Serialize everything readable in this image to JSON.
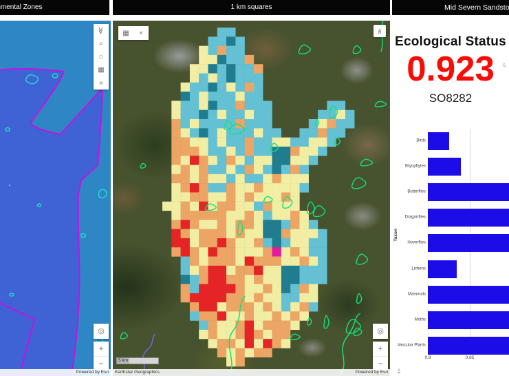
{
  "left_panel": {
    "title": "Environmental Zones",
    "attribution": "Powered by Esri",
    "toolbar": [
      {
        "name": "collapse-up-icon",
        "glyph": "≪",
        "rot": true
      },
      {
        "name": "search-icon",
        "glyph": "⌕",
        "rot": false
      },
      {
        "name": "home-icon",
        "glyph": "⌂",
        "rot": false
      },
      {
        "name": "basemap-grid-icon",
        "glyph": "▦",
        "rot": false
      },
      {
        "name": "collapse-left-icon",
        "glyph": "«",
        "rot": false
      }
    ],
    "controls": {
      "locate": "◎",
      "zoom_in": "+",
      "zoom_out": "−"
    },
    "colors": {
      "zone_light": "#2e86c5",
      "zone_dark": "#3f63d4",
      "boundary": "#c511e3",
      "site_outline": "#1fe0c8"
    }
  },
  "middle_panel": {
    "title": "1 km squares",
    "buttons": {
      "grid": "▦",
      "close": "×",
      "collapse_up": "≪"
    },
    "controls": {
      "locate": "◎",
      "zoom_in": "+",
      "zoom_out": "−"
    },
    "scale_bar": "5 km",
    "attribution_left": "Earthstar Geographics",
    "attribution_right": "Powered by Esri",
    "site_outline_color": "#14e07c",
    "river_color": "#6f63d6",
    "grid": {
      "palette": {
        "c": "#66c7dd",
        "t": "#1f7f96",
        "y": "#fbf7ab",
        "o": "#f6aa67",
        "r": "#ee2226",
        "m": "#ee18a4"
      },
      "rows": [
        "......cc.............",
        ".....cctc............",
        "....ycocc............",
        "....yytcco...........",
        "...yytctcco..........",
        "...ycyctccc..........",
        "..ycctcycoc..........",
        "..tcycccycc..........",
        ".yccytccoccc......cc.",
        ".ycctcyccycc.....ccyc",
        ".ocyccccoccc....cyocc",
        ".oyctcycccycc..ccocc.",
        ".ooyycyccoccyyccyyc..",
        ".oooyccycoccttoyyc...",
        ".oyroycoycyyttyyc....",
        ".yoyoccycoyctcoc.....",
        ".ooyoyycyccyoyyy.....",
        ".yoroccoyyoyyyyc.....",
        ".yyooyyoyoyyyoy......",
        "yyoyryooyycoyyy......",
        ".yoooooyyoycyyoy.....",
        ".oroyyoyooyttcoyc....",
        ".royoooyoyyttoyyyc...",
        ".rryooroyyoctcyycc...",
        ".oroyrooyyyomyoycc...",
        "..coyoooyroooyyoyc...",
        "..cyorryooryyttccc...",
        "..tcorrooyoyyttccc...",
        "..ocrrrroyyoytcoy....",
        "..orrrrooyoyyccyy....",
        "...orryoooyoycyoc....",
        "...cooryyoyyoyoy.....",
        "....coyyoryoooy......",
        "....yoyyoroyoo.......",
        ".....yooyryroy.......",
        "......oyoyoo.........",
        ".......yo............"
      ]
    }
  },
  "right_panel": {
    "title": "Mid Severn Sandstone Plateau",
    "heading": "Ecological Status",
    "value": "0.923",
    "value_color": "#f90c06",
    "partial_value": "0.",
    "grid_ref": "SO8282",
    "download_glyph": "↓",
    "chart_data": {
      "type": "bar",
      "orientation": "horizontal",
      "title": "",
      "categories": [
        "Birds",
        "Bryophytes",
        "Butterflies",
        "Dragonflies",
        "Hoverflies",
        "Lichens",
        "Mammals",
        "Moths",
        "Vascular Plants"
      ],
      "values": [
        0.825,
        0.839,
        0.92,
        0.92,
        0.92,
        0.834,
        0.92,
        0.92,
        0.92
      ],
      "clipped_at_right_edge": [
        false,
        false,
        true,
        true,
        true,
        false,
        true,
        true,
        true
      ],
      "ylabel": "Taxon",
      "xlabel": "",
      "xticks": [
        "0.8",
        "0.85"
      ],
      "xlim": [
        0.8,
        0.897
      ],
      "bar_color": "#1b0ce8",
      "grid": "on",
      "legend": "off"
    }
  }
}
